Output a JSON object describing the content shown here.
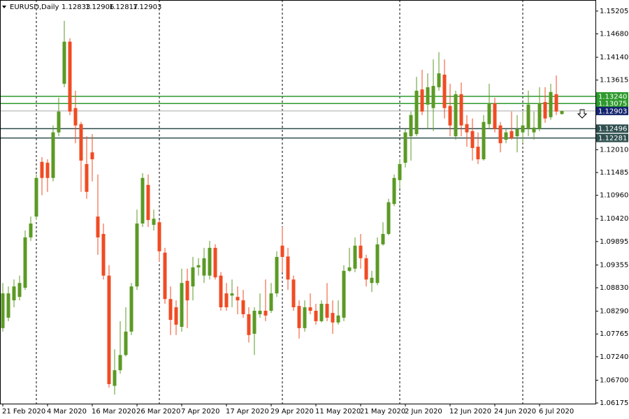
{
  "chart_data": {
    "type": "candlestick",
    "title": "EURUSD,Daily",
    "categories": [
      "21 Feb 2020",
      null,
      null,
      null,
      null,
      null,
      null,
      null,
      "4 Mar 2020",
      null,
      null,
      null,
      null,
      null,
      null,
      null,
      "16 Mar 2020",
      null,
      null,
      null,
      null,
      null,
      null,
      null,
      "26 Mar 2020",
      null,
      null,
      null,
      null,
      null,
      null,
      null,
      "7 Apr 2020",
      null,
      null,
      null,
      null,
      null,
      null,
      null,
      "17 Apr 2020",
      null,
      null,
      null,
      null,
      null,
      null,
      null,
      "29 Apr 2020",
      null,
      null,
      null,
      null,
      null,
      null,
      null,
      "11 May 2020",
      null,
      null,
      null,
      null,
      null,
      null,
      null,
      "21 May 2020",
      null,
      null,
      null,
      null,
      null,
      null,
      null,
      "2 Jun 2020",
      null,
      null,
      null,
      null,
      null,
      null,
      null,
      "12 Jun 2020",
      null,
      null,
      null,
      null,
      null,
      null,
      null,
      "24 Jun 2020",
      null,
      null,
      null,
      null,
      null,
      null,
      null,
      "6 Jul 2020",
      null,
      null,
      null,
      null
    ],
    "open": [
      1.079,
      1.0814,
      1.0854,
      1.0862,
      1.0883,
      1.0999,
      1.1047,
      1.1173,
      1.1171,
      1.1136,
      1.1241,
      1.1353,
      1.145,
      1.1297,
      1.126,
      1.1168,
      1.1195,
      1.1047,
      1.1007,
      1.0911,
      1.0657,
      1.0693,
      1.0728,
      1.0782,
      1.0886,
      1.1031,
      1.112,
      1.1028,
      1.1034,
      1.0964,
      1.0857,
      1.0838,
      1.0793,
      1.0899,
      1.0886,
      1.093,
      1.0911,
      1.0911,
      1.0975,
      1.0911,
      1.087,
      1.0865,
      1.0862,
      1.0854,
      1.0822,
      1.0777,
      1.0822,
      1.083,
      1.083,
      1.087,
      1.098,
      1.0955,
      1.0902,
      1.0841,
      1.079,
      1.0838,
      1.083,
      1.0806,
      1.0846,
      1.0825,
      1.0803,
      1.0814,
      1.0922,
      1.0927,
      1.098,
      1.0951,
      1.0894,
      1.0894,
      1.0983,
      1.1007,
      1.1076,
      1.1131,
      1.1171,
      1.1232,
      1.1237,
      1.134,
      1.1305,
      1.1297,
      1.1345,
      1.1374,
      1.1302,
      1.1232,
      1.1329,
      1.126,
      1.1244,
      1.1208,
      1.1179,
      1.126,
      1.1308,
      1.1257,
      1.1224,
      1.1244,
      1.1232,
      1.1241,
      1.1249,
      1.1241,
      1.1249,
      1.1311,
      1.1276,
      1.1329,
      1.12833
    ],
    "high": [
      1.0894,
      1.0886,
      1.0902,
      1.0911,
      1.1015,
      1.1047,
      1.1144,
      1.1184,
      1.1179,
      1.1257,
      1.1321,
      1.1498,
      1.1458,
      1.1337,
      1.1265,
      1.1232,
      1.1237,
      1.1144,
      1.1031,
      1.0935,
      1.0741,
      1.0806,
      1.0838,
      1.0894,
      1.1063,
      1.1147,
      1.1144,
      1.1063,
      1.1039,
      1.0975,
      1.0886,
      1.0854,
      1.0927,
      1.0927,
      1.0954,
      1.0951,
      1.0975,
      1.0991,
      1.0983,
      1.0919,
      1.0894,
      1.0902,
      1.0886,
      1.0878,
      1.0838,
      1.0838,
      1.087,
      1.0902,
      1.0894,
      1.0967,
      1.1023,
      1.0975,
      1.0911,
      1.0854,
      1.0854,
      1.087,
      1.0846,
      1.0854,
      1.0894,
      1.0854,
      1.0854,
      1.0935,
      1.0975,
      1.0999,
      1.1007,
      1.0959,
      1.0922,
      1.0999,
      1.1034,
      1.1088,
      1.1144,
      1.1179,
      1.1249,
      1.1289,
      1.1369,
      1.1385,
      1.1377,
      1.1409,
      1.1426,
      1.1409,
      1.1353,
      1.1337,
      1.1356,
      1.1281,
      1.1273,
      1.1241,
      1.1281,
      1.1353,
      1.1321,
      1.1265,
      1.1249,
      1.1289,
      1.1281,
      1.1289,
      1.1337,
      1.1289,
      1.1345,
      1.1345,
      1.1353,
      1.1372,
      1.12906
    ],
    "low": [
      1.0782,
      1.0806,
      1.0838,
      1.0854,
      1.0878,
      1.0991,
      1.1039,
      1.1096,
      1.1104,
      1.1128,
      1.1232,
      1.1345,
      1.1281,
      1.1216,
      1.1104,
      1.1088,
      1.1128,
      1.0959,
      1.0902,
      1.0653,
      1.0637,
      1.0685,
      1.0725,
      1.0774,
      1.0878,
      1.1023,
      1.1023,
      1.1015,
      1.0943,
      1.0846,
      1.0774,
      1.0774,
      1.0782,
      1.079,
      1.0854,
      1.0911,
      1.0894,
      1.0902,
      1.0902,
      1.083,
      1.083,
      1.0838,
      1.0822,
      1.0814,
      1.0757,
      1.0728,
      1.0814,
      1.0806,
      1.0825,
      1.0862,
      1.0919,
      1.0878,
      1.083,
      1.0766,
      1.0782,
      1.0822,
      1.0798,
      1.0803,
      1.0806,
      1.0777,
      1.0798,
      1.0806,
      1.0919,
      1.0919,
      1.0927,
      1.0886,
      1.0873,
      1.0889,
      1.098,
      1.1004,
      1.1071,
      1.1112,
      1.116,
      1.1176,
      1.1232,
      1.1281,
      1.1249,
      1.1244,
      1.1337,
      1.1273,
      1.1232,
      1.1224,
      1.1232,
      1.1208,
      1.1176,
      1.1168,
      1.1176,
      1.1249,
      1.1241,
      1.1195,
      1.1216,
      1.1224,
      1.1195,
      1.1216,
      1.1232,
      1.1224,
      1.1244,
      1.1263,
      1.127,
      1.1281,
      1.12817
    ],
    "close": [
      1.087,
      1.087,
      1.0886,
      1.0894,
      1.0999,
      1.1031,
      1.1136,
      1.1136,
      1.1136,
      1.1241,
      1.1289,
      1.145,
      1.1289,
      1.1257,
      1.1176,
      1.1104,
      1.1179,
      1.0999,
      1.0911,
      1.0661,
      1.0693,
      1.0728,
      1.0782,
      1.0886,
      1.1031,
      1.1136,
      1.1039,
      1.1042,
      1.0967,
      1.0857,
      1.0809,
      1.0798,
      1.0894,
      1.0854,
      1.093,
      1.0935,
      1.0951,
      1.0975,
      1.0907,
      1.0838,
      1.0838,
      1.087,
      1.0854,
      1.0822,
      1.0774,
      1.083,
      1.083,
      1.0819,
      1.087,
      1.0954,
      1.0954,
      1.0902,
      1.0838,
      1.079,
      1.0838,
      1.083,
      1.0806,
      1.0846,
      1.0814,
      1.0803,
      1.0819,
      1.0922,
      1.093,
      1.098,
      1.0951,
      1.0902,
      1.0906,
      1.0983,
      1.1007,
      1.108,
      1.1136,
      1.1168,
      1.1241,
      1.1281,
      1.1337,
      1.1289,
      1.1345,
      1.1348,
      1.1377,
      1.1297,
      1.1257,
      1.1329,
      1.1257,
      1.1241,
      1.1205,
      1.1179,
      1.1265,
      1.1308,
      1.1249,
      1.1216,
      1.1241,
      1.1228,
      1.1249,
      1.1257,
      1.1305,
      1.1252,
      1.1308,
      1.1273,
      1.1334,
      1.1289,
      1.12903
    ],
    "up_color": "#5b9a24",
    "down_color": "#f04b23",
    "ylim": [
      1.0616,
      1.1546
    ],
    "yticks": [
      1.15205,
      {
        "value": 1.1468,
        "label": "1.14680"
      },
      {
        "value": 1.1414,
        "label": "1.14140"
      },
      1.13615,
      {
        "value": 1.1201,
        "label": "1.12010"
      },
      1.11485,
      {
        "value": 1.1096,
        "label": "1.10960"
      },
      {
        "value": 1.1042,
        "label": "1.10420"
      },
      1.09895,
      1.09355,
      {
        "value": 1.0883,
        "label": "1.08830"
      },
      {
        "value": 1.0829,
        "label": "1.08290"
      },
      1.07765,
      {
        "value": 1.0724,
        "label": "1.07240"
      },
      {
        "value": 1.067,
        "label": "1.06700"
      },
      1.06175
    ],
    "grid": false,
    "last_price_color": "#14246e",
    "levels": [
      {
        "value": 1.1324,
        "label": "1.13240",
        "color": "#2d9a2d"
      },
      {
        "value": 1.13075,
        "color": "#2d9a2d"
      },
      {
        "value": 1.12496,
        "color": "#2f4f4f"
      },
      {
        "value": 1.12281,
        "color": "#2f4f4f"
      }
    ]
  }
}
